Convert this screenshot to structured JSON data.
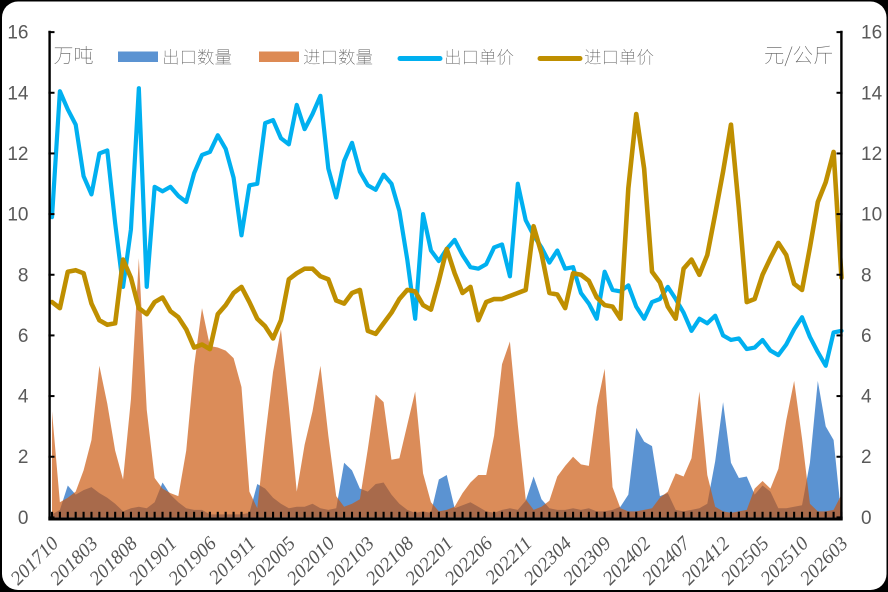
{
  "figure": {
    "type": "combo chart (stacked-free area + line, dual axis)",
    "background_color": "#000000",
    "card_color": "#ffffff",
    "left_axis_title": "万吨",
    "right_axis_title": "元/公斤",
    "legend": {
      "items": [
        {
          "label": "出口数量",
          "swatch": "area-rect",
          "color": "#5B93D2"
        },
        {
          "label": "进口数量",
          "swatch": "area-rect",
          "color": "#DD8A54"
        },
        {
          "label": "出口单价",
          "swatch": "line",
          "color": "#00B0F0"
        },
        {
          "label": "进口单价",
          "swatch": "line",
          "color": "#BF8F00"
        }
      ]
    },
    "text_color": "#595959",
    "axis_color": "#000000"
  },
  "chart_data": {
    "type": "area+line combo, dual y-axes",
    "title": "",
    "xlabel": "",
    "left_axis": {
      "title": "万吨",
      "min": 0,
      "max": 16,
      "step": 2,
      "tick_labels": [
        "0",
        "2",
        "4",
        "6",
        "8",
        "10",
        "12",
        "14",
        "16"
      ]
    },
    "right_axis": {
      "title": "元/公斤",
      "min": 0,
      "max": 16,
      "step": 2,
      "tick_labels": [
        "0",
        "2",
        "4",
        "6",
        "8",
        "10",
        "12",
        "14",
        "16"
      ]
    },
    "x_tick_labels": [
      "201710",
      "201803",
      "201808",
      "201901",
      "201906",
      "201911",
      "202005",
      "202010",
      "202103",
      "202108",
      "202201",
      "202206",
      "202211",
      "202304",
      "202309",
      "202402",
      "202407",
      "202412",
      "202505",
      "202510",
      "202603"
    ],
    "x_categories": [
      "201710",
      "201711",
      "201712",
      "201801",
      "201802",
      "201803",
      "201804",
      "201805",
      "201806",
      "201807",
      "201808",
      "201809",
      "201810",
      "201811",
      "201812",
      "201901",
      "201902",
      "201903",
      "201904",
      "201905",
      "201906",
      "201907",
      "201908",
      "201909",
      "201910",
      "201911",
      "201912",
      "202001",
      "202003",
      "202004",
      "202005",
      "202006",
      "202007",
      "202008",
      "202009",
      "202010",
      "202011",
      "202012",
      "202101",
      "202102",
      "202103",
      "202104",
      "202105",
      "202106",
      "202107",
      "202108",
      "202109",
      "202110",
      "202111",
      "202112",
      "202201",
      "202202",
      "202203",
      "202204",
      "202205",
      "202206",
      "202207",
      "202208",
      "202209",
      "202210",
      "202211",
      "202212",
      "202301",
      "202302",
      "202303",
      "202304",
      "202305",
      "202306",
      "202307",
      "202308",
      "202309",
      "202310",
      "202311",
      "202312",
      "202401",
      "202402",
      "202403",
      "202404",
      "202405",
      "202406",
      "202407",
      "202408",
      "202409",
      "202410",
      "202411",
      "202412",
      "202501",
      "202502",
      "202503",
      "202504",
      "202505",
      "202506",
      "202507",
      "202508",
      "202509",
      "202510",
      "202511",
      "202512",
      "202601",
      "202602",
      "202603"
    ],
    "series": [
      {
        "name": "出口数量",
        "type": "area",
        "axis": "left",
        "color": "#5B93D2",
        "values": [
          0.1,
          0.25,
          1.05,
          0.75,
          0.9,
          1.0,
          0.8,
          0.65,
          0.45,
          0.2,
          0.3,
          0.35,
          0.3,
          0.5,
          1.15,
          0.75,
          0.5,
          0.3,
          0.25,
          0.25,
          0.1,
          0.1,
          0.1,
          0.1,
          0.1,
          0.15,
          1.1,
          0.95,
          0.65,
          0.45,
          0.3,
          0.35,
          0.35,
          0.45,
          0.3,
          0.25,
          0.3,
          1.8,
          1.55,
          0.95,
          0.85,
          1.1,
          1.15,
          0.75,
          0.45,
          0.25,
          0.15,
          0.2,
          0.15,
          1.25,
          1.4,
          0.3,
          0.4,
          0.5,
          0.35,
          0.2,
          0.15,
          0.25,
          0.3,
          0.25,
          0.55,
          1.35,
          0.6,
          0.3,
          0.25,
          0.25,
          0.3,
          0.25,
          0.3,
          0.2,
          0.2,
          0.25,
          0.35,
          0.75,
          2.95,
          2.5,
          2.35,
          0.7,
          0.8,
          0.25,
          0.2,
          0.25,
          0.3,
          0.45,
          1.85,
          3.8,
          1.8,
          1.3,
          1.35,
          0.75,
          1.05,
          0.85,
          0.3,
          0.3,
          0.35,
          0.4,
          1.8,
          4.5,
          3.0,
          2.55,
          0.0
        ]
      },
      {
        "name": "进口数量",
        "type": "area",
        "axis": "left",
        "color": "#DD8A54",
        "fill": "rgba(203,89,15,0.69)",
        "values": [
          3.5,
          0.5,
          0.65,
          0.85,
          1.55,
          2.55,
          5.0,
          3.75,
          2.2,
          1.25,
          3.9,
          8.55,
          3.55,
          1.3,
          0.95,
          0.8,
          0.7,
          2.2,
          5.0,
          6.9,
          5.65,
          5.6,
          5.5,
          5.25,
          4.3,
          0.85,
          0.3,
          2.65,
          4.8,
          6.2,
          3.65,
          0.85,
          2.4,
          3.5,
          5.0,
          2.7,
          0.7,
          0.35,
          0.45,
          0.6,
          2.25,
          4.05,
          3.8,
          1.9,
          1.95,
          3.05,
          4.15,
          1.45,
          0.5,
          0.2,
          0.25,
          0.35,
          0.8,
          1.15,
          1.4,
          1.4,
          2.7,
          5.05,
          5.8,
          3.05,
          0.6,
          0.25,
          0.35,
          0.55,
          1.35,
          1.7,
          2.0,
          1.75,
          1.7,
          3.65,
          4.9,
          1.0,
          0.3,
          0.2,
          0.2,
          0.25,
          0.3,
          0.65,
          0.85,
          1.45,
          1.35,
          1.95,
          4.15,
          1.4,
          0.35,
          0.2,
          0.15,
          0.2,
          0.25,
          0.95,
          1.2,
          0.95,
          1.6,
          3.2,
          4.5,
          2.6,
          0.45,
          0.2,
          0.2,
          0.25,
          0.75
        ]
      },
      {
        "name": "出口单价",
        "type": "line",
        "axis": "right",
        "color": "#00B0F0",
        "values": [
          9.9,
          14.05,
          13.45,
          12.95,
          11.25,
          10.65,
          12.0,
          12.1,
          9.7,
          7.6,
          9.5,
          14.15,
          7.6,
          10.9,
          10.75,
          10.9,
          10.6,
          10.4,
          11.35,
          11.95,
          12.05,
          12.6,
          12.15,
          11.2,
          9.3,
          10.95,
          11.0,
          13.0,
          13.1,
          12.5,
          12.3,
          13.6,
          12.8,
          13.3,
          13.9,
          11.5,
          10.55,
          11.75,
          12.35,
          11.4,
          10.95,
          10.8,
          11.3,
          11.0,
          10.1,
          8.5,
          6.55,
          10.0,
          8.8,
          8.45,
          8.85,
          9.15,
          8.65,
          8.25,
          8.2,
          8.35,
          8.9,
          9.0,
          7.95,
          11.0,
          9.8,
          9.3,
          8.9,
          8.4,
          8.8,
          8.2,
          8.25,
          7.4,
          7.05,
          6.55,
          8.1,
          7.5,
          7.45,
          7.65,
          6.95,
          6.55,
          7.1,
          7.2,
          7.6,
          7.2,
          6.75,
          6.15,
          6.55,
          6.4,
          6.65,
          6.0,
          5.85,
          5.9,
          5.55,
          5.6,
          5.85,
          5.5,
          5.35,
          5.7,
          6.2,
          6.6,
          5.95,
          5.45,
          5.0,
          6.1,
          6.15
        ]
      },
      {
        "name": "进口单价",
        "type": "line",
        "axis": "right",
        "color": "#BF8F00",
        "values": [
          7.1,
          6.9,
          8.1,
          8.15,
          8.05,
          7.05,
          6.5,
          6.35,
          6.4,
          8.5,
          7.9,
          6.9,
          6.7,
          7.1,
          7.25,
          6.8,
          6.6,
          6.2,
          5.6,
          5.7,
          5.55,
          6.7,
          7.0,
          7.4,
          7.6,
          7.1,
          6.55,
          6.3,
          5.9,
          6.5,
          7.85,
          8.05,
          8.2,
          8.2,
          7.95,
          7.85,
          7.15,
          7.05,
          7.4,
          7.5,
          6.15,
          6.05,
          6.4,
          6.75,
          7.2,
          7.5,
          7.45,
          7.0,
          6.85,
          7.8,
          8.85,
          8.05,
          7.4,
          7.6,
          6.5,
          7.1,
          7.2,
          7.2,
          7.3,
          7.4,
          7.5,
          9.6,
          8.7,
          7.4,
          7.35,
          6.9,
          8.05,
          8.0,
          7.8,
          7.25,
          7.0,
          6.95,
          6.55,
          10.85,
          13.3,
          11.5,
          8.1,
          7.75,
          6.95,
          6.55,
          8.2,
          8.5,
          8.0,
          8.65,
          10.0,
          11.4,
          12.95,
          10.2,
          7.1,
          7.2,
          8.0,
          8.55,
          9.05,
          8.65,
          7.7,
          7.5,
          8.9,
          10.4,
          11.05,
          12.05,
          7.9
        ]
      }
    ],
    "legend_position": "top",
    "grid": false
  }
}
